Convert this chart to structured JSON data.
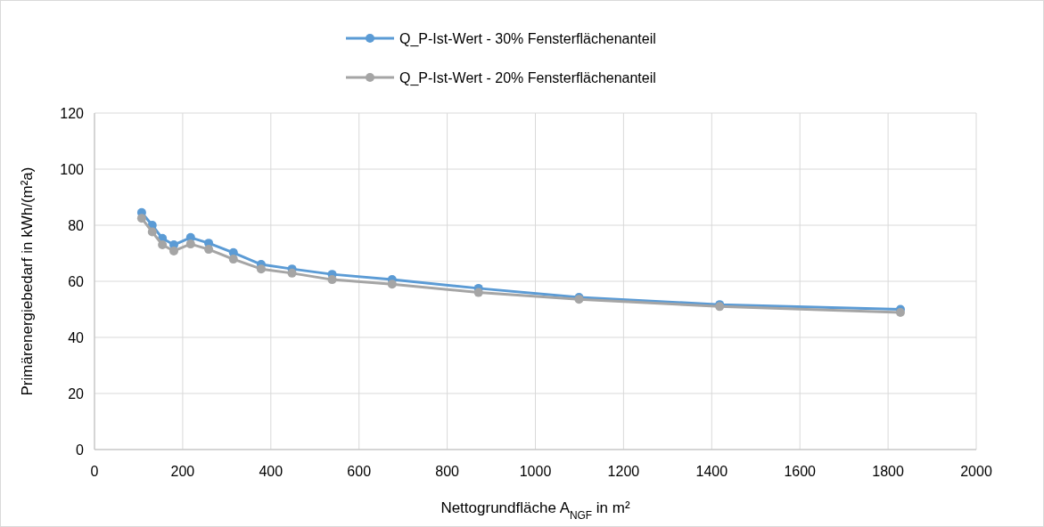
{
  "chart_data": {
    "type": "line",
    "xlabel": "Nettogrundfläche A$_{NGF}$ in m²",
    "ylabel": "Primärenergiebedarf in kWh/(m²a)",
    "x": [
      107,
      131,
      154,
      180,
      218,
      259,
      315,
      378,
      448,
      539,
      675,
      871,
      1099,
      1418,
      1828
    ],
    "series": [
      {
        "name": "Q_P-Ist-Wert - 30% Fensterflächenanteil",
        "color": "#5b9bd5",
        "values": [
          84.5,
          80,
          75.3,
          73,
          75.6,
          73.6,
          70.2,
          66,
          64.4,
          62.5,
          60.6,
          57.5,
          54.3,
          51.7,
          50
        ]
      },
      {
        "name": "Q_P-Ist-Wert - 20% Fensterflächenanteil",
        "color": "#a5a5a5",
        "values": [
          82.5,
          77.6,
          73,
          70.8,
          73.3,
          71.4,
          67.9,
          64.4,
          62.9,
          60.6,
          59,
          56,
          53.6,
          51,
          48.9
        ]
      }
    ],
    "xlim": [
      0,
      2000
    ],
    "xticks": [
      0,
      200,
      400,
      600,
      800,
      1000,
      1200,
      1400,
      1600,
      1800,
      2000
    ],
    "ylim": [
      0,
      120
    ],
    "yticks": [
      0,
      20,
      40,
      60,
      80,
      100,
      120
    ],
    "grid": true,
    "legend": "top",
    "marker": "circle",
    "line_style": "solid"
  }
}
